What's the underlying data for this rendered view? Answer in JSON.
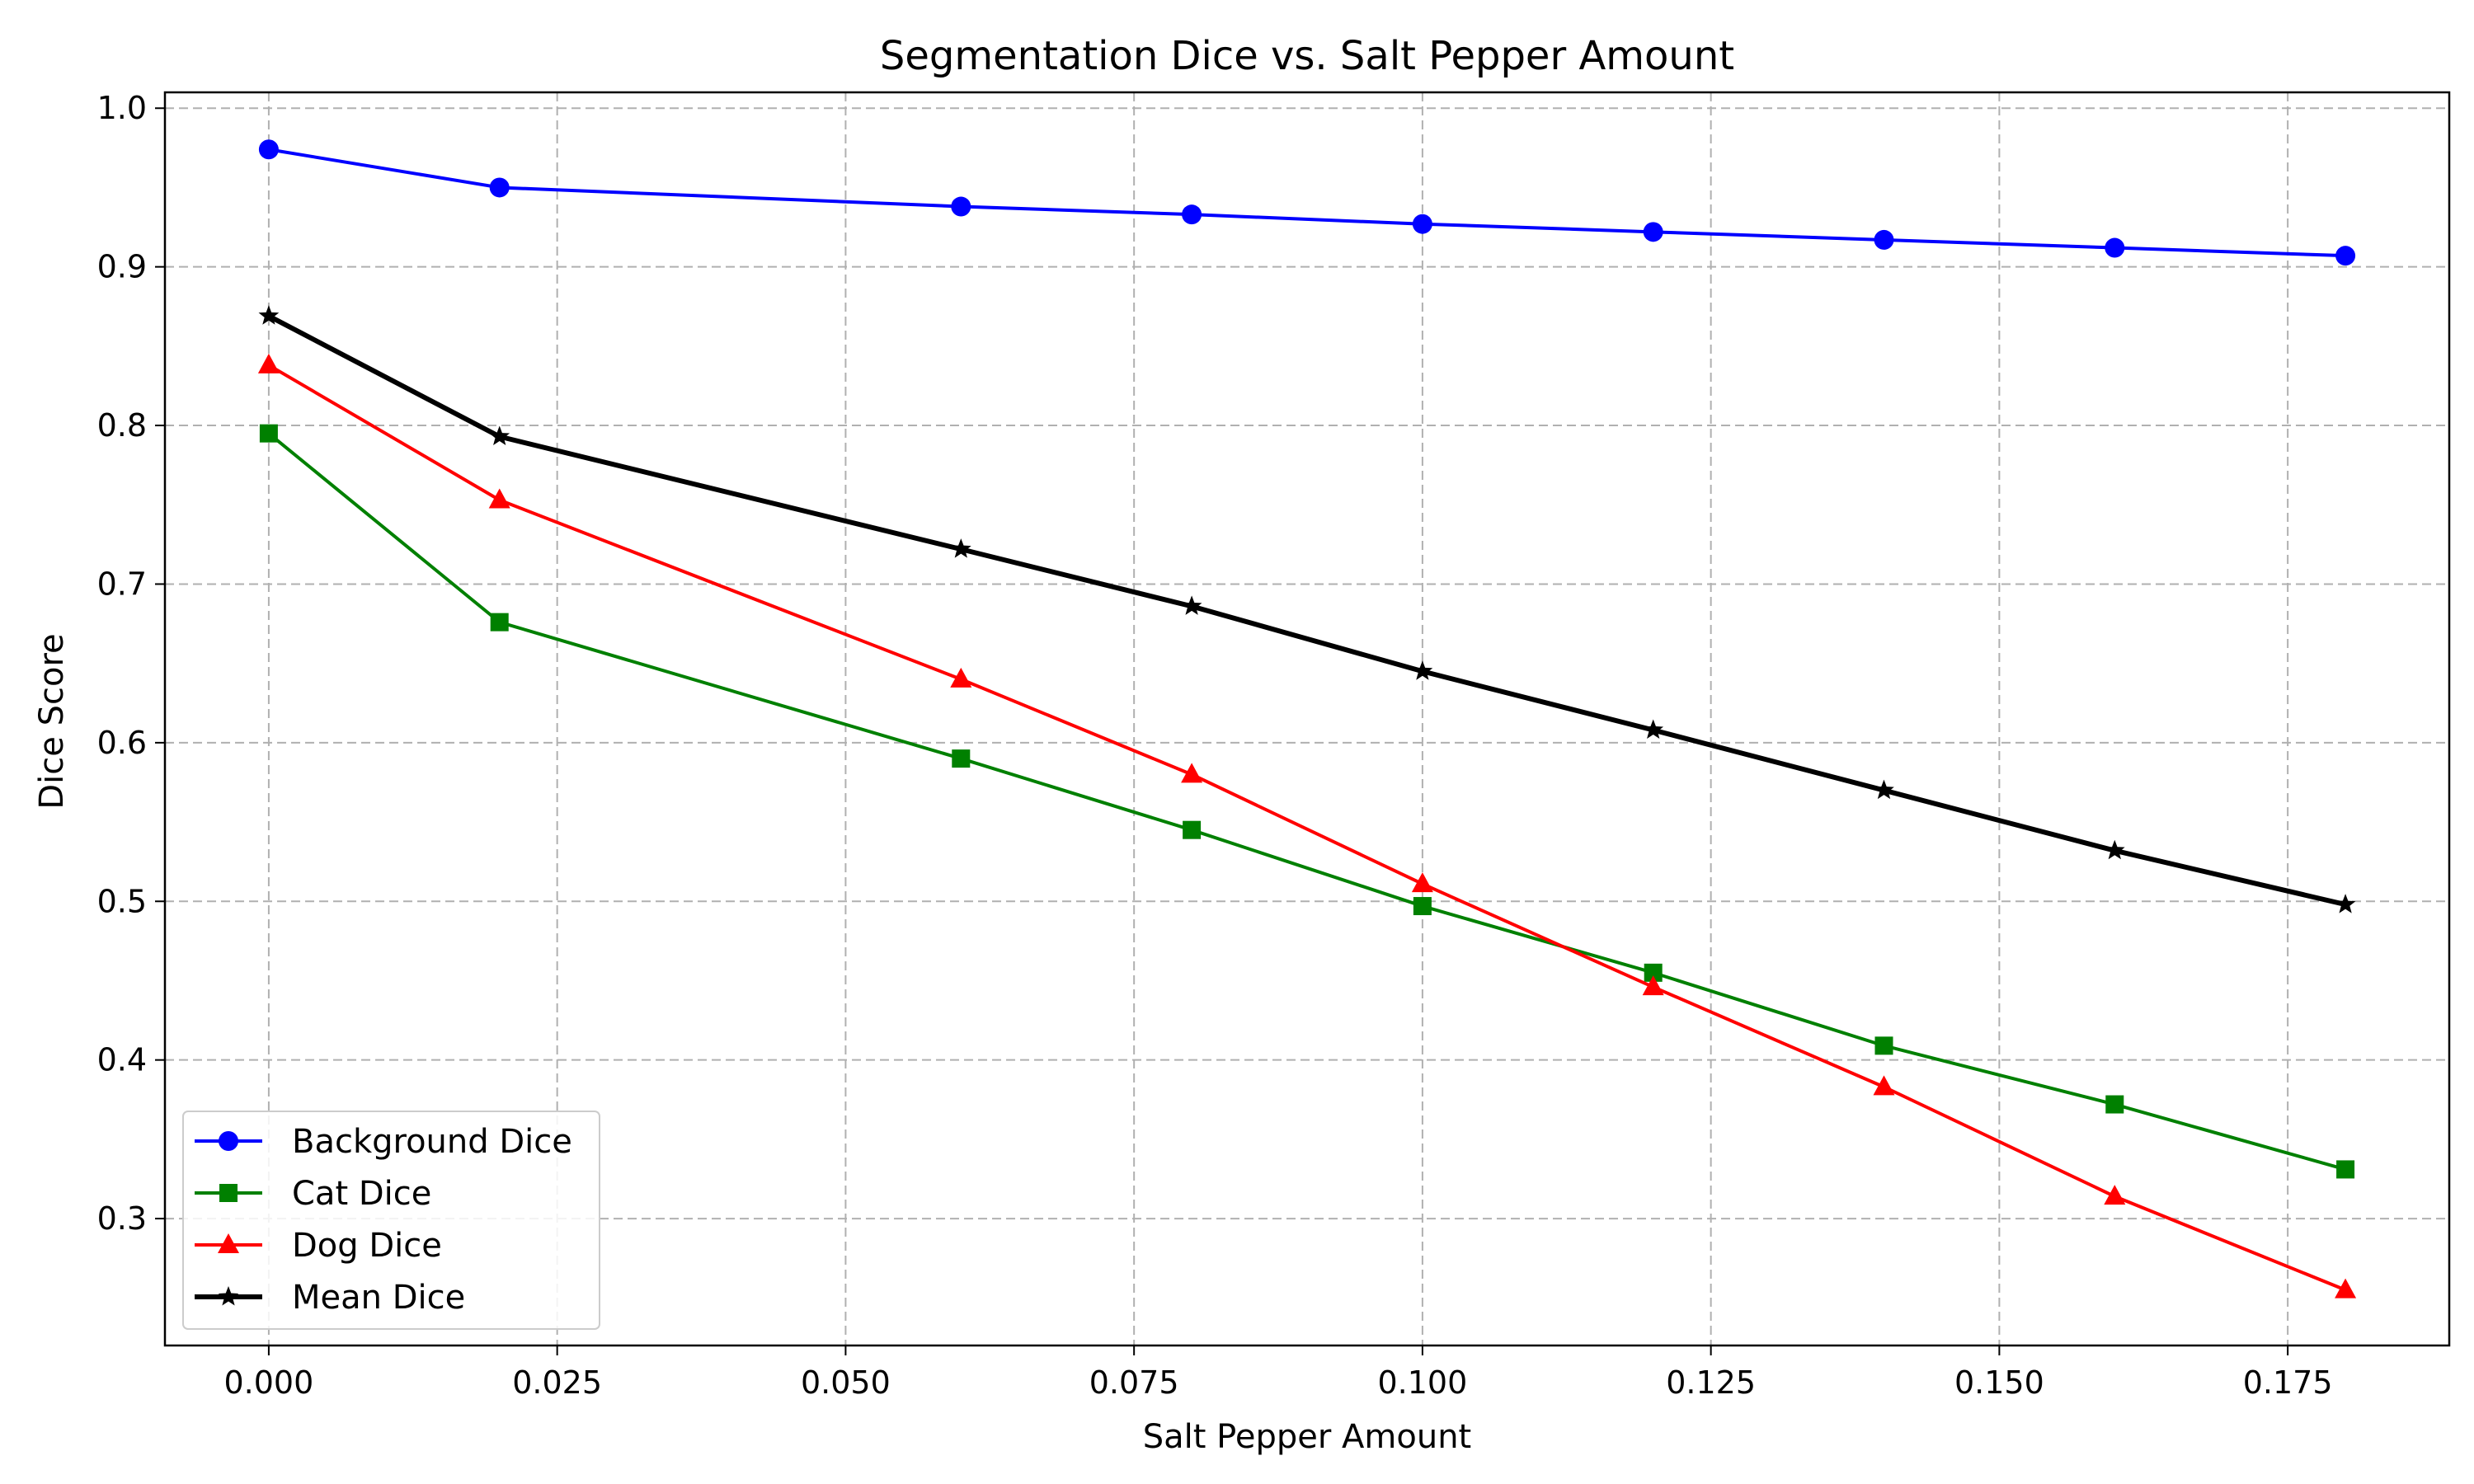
{
  "chart_data": {
    "type": "line",
    "title": "Segmentation Dice vs. Salt Pepper Amount",
    "xlabel": "Salt Pepper Amount",
    "ylabel": "Dice Score",
    "x": [
      0.0,
      0.02,
      0.06,
      0.08,
      0.1,
      0.12,
      0.14,
      0.16,
      0.18
    ],
    "xlim": [
      -0.009,
      0.189
    ],
    "ylim": [
      0.22,
      1.01
    ],
    "xticks": [
      0.0,
      0.025,
      0.05,
      0.075,
      0.1,
      0.125,
      0.15,
      0.175
    ],
    "xtick_labels": [
      "0.000",
      "0.025",
      "0.050",
      "0.075",
      "0.100",
      "0.125",
      "0.150",
      "0.175"
    ],
    "yticks": [
      0.3,
      0.4,
      0.5,
      0.6,
      0.7,
      0.8,
      0.9,
      1.0
    ],
    "ytick_labels": [
      "0.3",
      "0.4",
      "0.5",
      "0.6",
      "0.7",
      "0.8",
      "0.9",
      "1.0"
    ],
    "grid": true,
    "legend_position": "bottom-left",
    "series": [
      {
        "name": "Background Dice",
        "color": "#0000ff",
        "marker": "circle",
        "values": [
          0.974,
          0.95,
          0.938,
          0.933,
          0.927,
          0.922,
          0.917,
          0.912,
          0.907
        ]
      },
      {
        "name": "Cat Dice",
        "color": "#008000",
        "marker": "square",
        "values": [
          0.795,
          0.676,
          0.59,
          0.545,
          0.497,
          0.455,
          0.409,
          0.372,
          0.331
        ]
      },
      {
        "name": "Dog Dice",
        "color": "#ff0000",
        "marker": "triangle",
        "values": [
          0.838,
          0.753,
          0.64,
          0.58,
          0.511,
          0.446,
          0.383,
          0.314,
          0.255
        ]
      },
      {
        "name": "Mean Dice",
        "color": "#000000",
        "marker": "star",
        "values": [
          0.869,
          0.793,
          0.722,
          0.686,
          0.645,
          0.608,
          0.57,
          0.532,
          0.498
        ]
      }
    ]
  }
}
